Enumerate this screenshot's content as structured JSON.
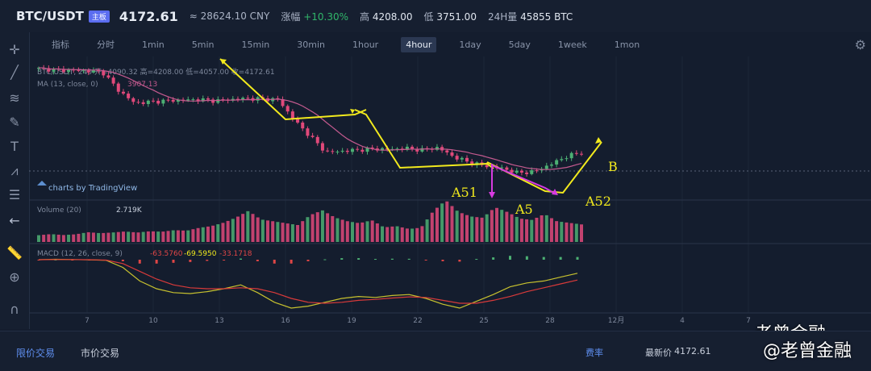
{
  "header": {
    "pair": "BTC/USDT",
    "badge": "主板",
    "last_price": "4172.61",
    "cny": "≈ 28624.10 CNY",
    "change_label": "涨幅",
    "change_value": "+10.30%",
    "high_label": "高",
    "high_value": "4208.00",
    "low_label": "低",
    "low_value": "3751.00",
    "vol_label": "24H量",
    "vol_value": "45855 BTC"
  },
  "periods": [
    "指标",
    "分时",
    "1min",
    "5min",
    "15min",
    "30min",
    "1hour",
    "4hour",
    "1day",
    "5day",
    "1week",
    "1mon"
  ],
  "active_period": "4hour",
  "legend": {
    "ohlc": "BTC/USDT, 240  开=4090.32  高=4208.00  低=4057.00  收=4172.61",
    "ma": "MA (13, close, 0)",
    "ma_value": "3907.13",
    "tradingview": "charts by TradingView",
    "volume": "Volume (20)",
    "volume_value": "2.719K",
    "macd": "MACD (12, 26, close, 9)",
    "macd_v1": "-63.5760",
    "macd_v2": "-69.5950",
    "macd_v3": "-33.1718"
  },
  "annotations": {
    "a51": "A51",
    "a5": "A5",
    "a52": "A52",
    "b": "B"
  },
  "bottom": {
    "tab1": "限价交易",
    "tab2": "市价交易",
    "fee": "费率",
    "latest_label": "最新价",
    "latest_value": "4172.61"
  },
  "watermark": "老曾金融",
  "watermark2": "@老曾金融",
  "colors": {
    "up": "#4caf73",
    "down": "#e0497a",
    "ma": "#c45a8f",
    "annotation_yellow": "#f2ea1d",
    "annotation_magenta": "#d63be0"
  },
  "chart_data": {
    "type": "candlestick",
    "x_ticks": [
      "7",
      "10",
      "13",
      "16",
      "19",
      "22",
      "25",
      "28",
      "12月",
      "4",
      "7"
    ],
    "price_path": [
      4150,
      4140,
      4135,
      4130,
      4120,
      3960,
      3850,
      3860,
      3870,
      3875,
      3880,
      3870,
      3880,
      3890,
      3885,
      3880,
      3700,
      3560,
      3420,
      3430,
      3440,
      3450,
      3445,
      3455,
      3440,
      3460,
      3380,
      3330,
      3300,
      3280,
      3240,
      3250,
      3310,
      3380,
      3420
    ],
    "volume_profile": [
      20,
      22,
      18,
      19,
      24,
      20,
      21,
      23,
      19,
      22,
      20,
      24,
      22,
      30,
      35,
      45,
      60,
      80,
      55,
      50,
      45,
      40,
      70,
      85,
      65,
      55,
      50,
      60,
      40,
      45,
      38,
      42,
      90,
      120,
      85,
      70,
      65,
      95,
      80,
      60,
      55,
      72,
      50,
      45,
      40
    ],
    "macd_fast": [
      0,
      2,
      1,
      -1,
      -3,
      -40,
      -110,
      -150,
      -170,
      -175,
      -165,
      -150,
      -130,
      -170,
      -220,
      -250,
      -240,
      -220,
      -200,
      -190,
      -195,
      -185,
      -180,
      -200,
      -230,
      -250,
      -215,
      -180,
      -140,
      -120,
      -110,
      -90,
      -70
    ],
    "macd_slow": [
      0,
      1,
      1,
      0,
      -2,
      -20,
      -60,
      -100,
      -130,
      -145,
      -150,
      -150,
      -145,
      -150,
      -170,
      -200,
      -220,
      -225,
      -220,
      -210,
      -205,
      -198,
      -192,
      -195,
      -210,
      -225,
      -225,
      -210,
      -190,
      -165,
      -145,
      -125,
      -105
    ]
  }
}
